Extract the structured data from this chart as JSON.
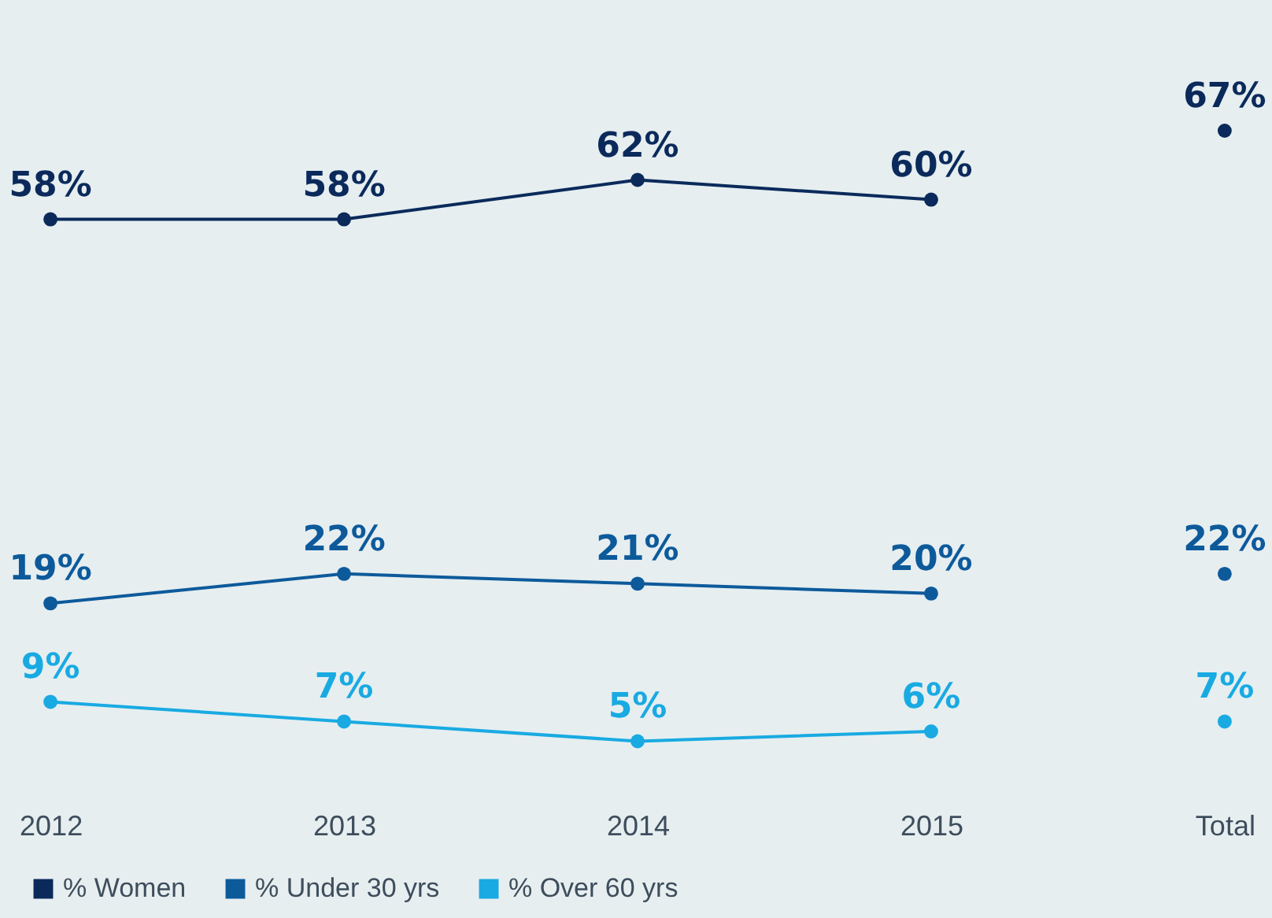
{
  "chart_data": {
    "type": "line",
    "categories": [
      "2012",
      "2013",
      "2014",
      "2015",
      "Total"
    ],
    "tick_labels": "x",
    "legend": "bottom left",
    "marker": "circle",
    "grid": false,
    "series": [
      {
        "name": "% Women",
        "color": "#0b2a5b",
        "values": [
          58,
          58,
          62,
          60,
          null
        ],
        "value_labels": [
          "58%",
          "58%",
          "62%",
          "60%",
          null
        ]
      },
      {
        "name": "% Under 30 yrs",
        "color": "#0d5a9b",
        "values": [
          19,
          22,
          21,
          20,
          null
        ],
        "value_labels": [
          "19%",
          "22%",
          "21%",
          "20%",
          null
        ]
      },
      {
        "name": "% Over 60 yrs",
        "color": "#19aae2",
        "values": [
          9,
          7,
          5,
          6,
          null
        ],
        "value_labels": [
          "9%",
          "7%",
          "5%",
          "6%",
          null
        ]
      },
      {
        "type": "scatter",
        "color": "#0b2a5b",
        "x": [
          "Total"
        ],
        "values": [
          67
        ],
        "value_labels": [
          "67%"
        ]
      },
      {
        "type": "scatter",
        "color": "#0d5a9b",
        "x": [
          "Total"
        ],
        "values": [
          22
        ],
        "value_labels": [
          "22%"
        ]
      },
      {
        "type": "scatter",
        "color": "#19aae2",
        "x": [
          "Total"
        ],
        "values": [
          7
        ],
        "value_labels": [
          "7%"
        ]
      }
    ]
  }
}
